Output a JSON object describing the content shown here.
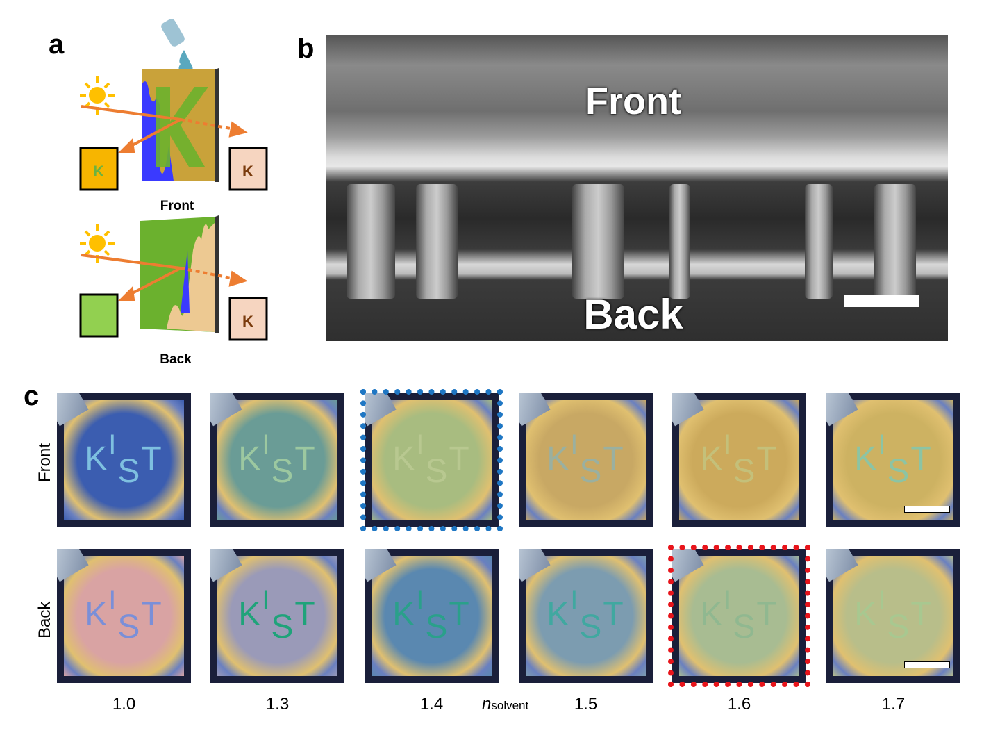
{
  "panels": {
    "a": "a",
    "b": "b",
    "c": "c"
  },
  "panel_a": {
    "front_label": "Front",
    "back_label": "Back",
    "box_letter": "K",
    "colors": {
      "front_left": "#f7b500",
      "front_letter": "#6cb33f",
      "right_box": "#f6d5c0",
      "right_letter": "#7a3b0d",
      "back_left": "#92d050",
      "arrow": "#ed7d31",
      "sun": "#ffc000",
      "film_blue": "#3a3aff",
      "film_gold": "#c9a23a",
      "film_green": "#6bb12e",
      "film_beige": "#edc992"
    }
  },
  "panel_b": {
    "top_label": "Front",
    "bottom_label": "Back"
  },
  "panel_c": {
    "row_labels": [
      "Front",
      "Back"
    ],
    "axis_label_n": "n",
    "axis_label_sub": "solvent",
    "sample_text": {
      "k": "K",
      "i": "I",
      "s": "S",
      "t": "T"
    },
    "columns": [
      {
        "n": "1.0",
        "front": "#3b5db0",
        "front_text": "#7ec0e0",
        "back": "#d9a3a3",
        "back_text": "#7a8fd8"
      },
      {
        "n": "1.3",
        "front": "#6a9c96",
        "front_text": "#9cc8a0",
        "back": "#9a9ab8",
        "back_text": "#1fa37a"
      },
      {
        "n": "1.4",
        "front": "#a8bc80",
        "front_text": "#b8c890",
        "back": "#5a88b0",
        "back_text": "#2aa08a"
      },
      {
        "n": "1.5",
        "front": "#c8a864",
        "front_text": "#9ab0a0",
        "back": "#7c9cb0",
        "back_text": "#40a8a0"
      },
      {
        "n": "1.6",
        "front": "#ccaa5c",
        "front_text": "#c4c07a",
        "back": "#a8bc92",
        "back_text": "#90b890"
      },
      {
        "n": "1.7",
        "front": "#cdb262",
        "front_text": "#8cc4a4",
        "back": "#b8be8a",
        "back_text": "#a8c890"
      }
    ],
    "highlight_front": {
      "column": "1.4",
      "color": "#1f77c4"
    },
    "highlight_back": {
      "column": "1.6",
      "color": "#e8141b"
    }
  }
}
